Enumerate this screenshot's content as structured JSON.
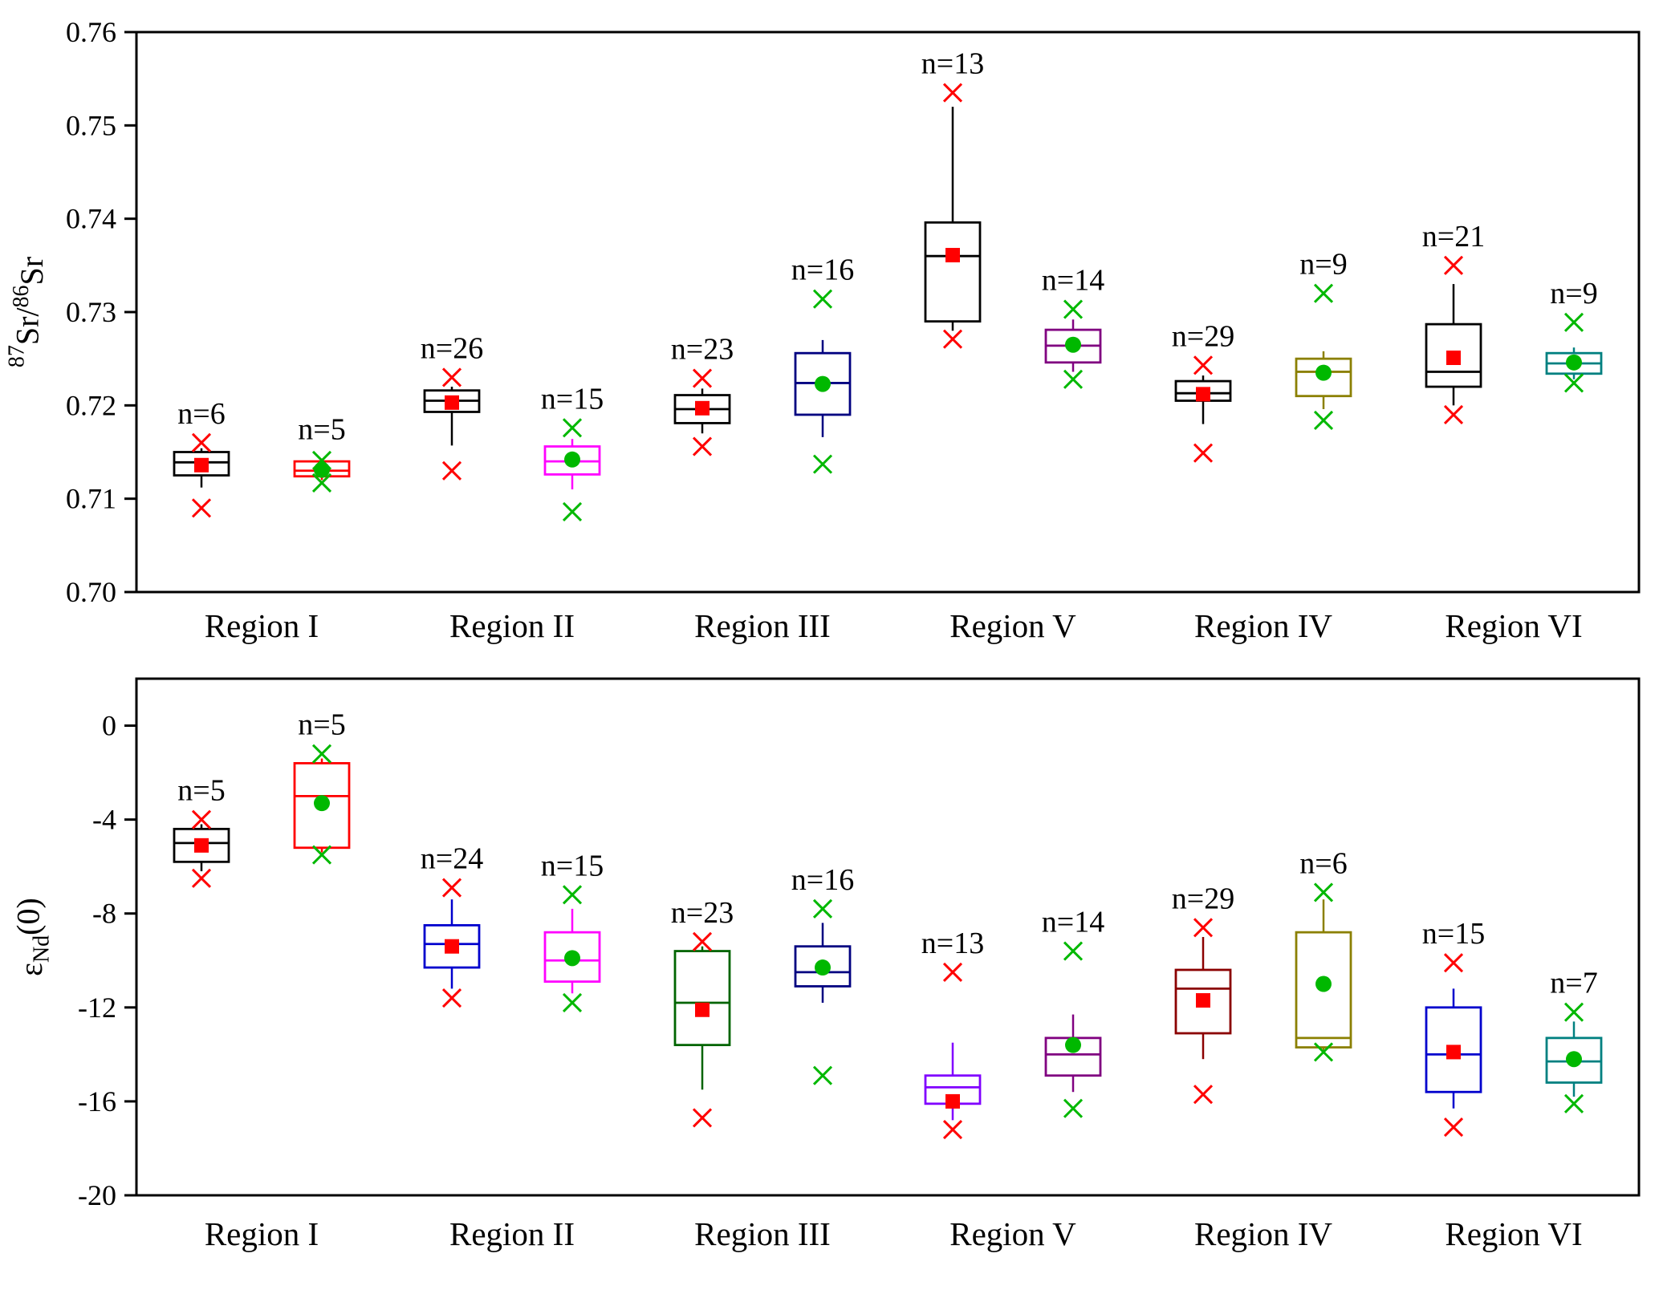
{
  "figure": {
    "background": "#ffffff",
    "frame_color": "#000000"
  },
  "chart_data": [
    {
      "type": "boxplot",
      "panel": "sr-isotope-ratio",
      "ylabel_text": "87Sr/86Sr",
      "ylabel_rich": [
        {
          "text": "87",
          "sup": true
        },
        {
          "text": "Sr/"
        },
        {
          "text": "86",
          "sup": true
        },
        {
          "text": "Sr"
        }
      ],
      "ylim": [
        0.7,
        0.76
      ],
      "yticks": [
        {
          "v": 0.76,
          "label": "0.76"
        },
        {
          "v": 0.75,
          "label": "0.75"
        },
        {
          "v": 0.74,
          "label": "0.74"
        },
        {
          "v": 0.73,
          "label": "0.73"
        },
        {
          "v": 0.72,
          "label": "0.72"
        },
        {
          "v": 0.71,
          "label": "0.71"
        },
        {
          "v": 0.7,
          "label": "0.70"
        }
      ],
      "categories": [
        "Region I",
        "Region II",
        "Region III",
        "Region V",
        "Region IV",
        "Region VI"
      ],
      "groups": [
        {
          "category": "Region I",
          "boxes": [
            {
              "n_label": "n=6",
              "color": "#000000",
              "marker": "square",
              "marker_color": "#ff0000",
              "q1": 0.7125,
              "q3": 0.715,
              "median": 0.7139,
              "mean": 0.7136,
              "whisker_low": 0.7112,
              "whisker_high": 0.7154,
              "outliers_high": [
                0.716
              ],
              "outliers_low": [
                0.709
              ]
            },
            {
              "n_label": "n=5",
              "color": "#ff0000",
              "marker": "circle",
              "marker_color": "#00b800",
              "q1": 0.7124,
              "q3": 0.714,
              "median": 0.713,
              "mean": 0.7131,
              "whisker_low": 0.712,
              "whisker_high": 0.7143,
              "outliers_high": [
                0.7141
              ],
              "outliers_low": [
                0.7117
              ]
            }
          ]
        },
        {
          "category": "Region II",
          "boxes": [
            {
              "n_label": "n=26",
              "color": "#000000",
              "marker": "square",
              "marker_color": "#ff0000",
              "q1": 0.7193,
              "q3": 0.7216,
              "median": 0.7205,
              "mean": 0.7203,
              "whisker_low": 0.7157,
              "whisker_high": 0.722,
              "outliers_high": [
                0.723
              ],
              "outliers_low": [
                0.713
              ]
            },
            {
              "n_label": "n=15",
              "color": "#ff00ff",
              "marker": "circle",
              "marker_color": "#00b800",
              "q1": 0.7126,
              "q3": 0.7156,
              "median": 0.714,
              "mean": 0.7142,
              "whisker_low": 0.711,
              "whisker_high": 0.7164,
              "outliers_high": [
                0.7176
              ],
              "outliers_low": [
                0.7086
              ]
            }
          ]
        },
        {
          "category": "Region III",
          "boxes": [
            {
              "n_label": "n=23",
              "color": "#000000",
              "marker": "square",
              "marker_color": "#ff0000",
              "q1": 0.7181,
              "q3": 0.7211,
              "median": 0.7196,
              "mean": 0.7197,
              "whisker_low": 0.717,
              "whisker_high": 0.7218,
              "outliers_high": [
                0.7229
              ],
              "outliers_low": [
                0.7156
              ]
            },
            {
              "n_label": "n=16",
              "color": "#000080",
              "marker": "circle",
              "marker_color": "#00b800",
              "q1": 0.719,
              "q3": 0.7256,
              "median": 0.7224,
              "mean": 0.7223,
              "whisker_low": 0.7166,
              "whisker_high": 0.727,
              "outliers_high": [
                0.7314
              ],
              "outliers_low": [
                0.7137
              ]
            }
          ]
        },
        {
          "category": "Region V",
          "boxes": [
            {
              "n_label": "n=13",
              "color": "#000000",
              "marker": "square",
              "marker_color": "#ff0000",
              "q1": 0.729,
              "q3": 0.7396,
              "median": 0.736,
              "mean": 0.7361,
              "whisker_low": 0.728,
              "whisker_high": 0.752,
              "outliers_high": [
                0.7535
              ],
              "outliers_low": [
                0.7271
              ]
            },
            {
              "n_label": "n=14",
              "color": "#800080",
              "marker": "circle",
              "marker_color": "#00b800",
              "q1": 0.7246,
              "q3": 0.7281,
              "median": 0.7264,
              "mean": 0.7265,
              "whisker_low": 0.7236,
              "whisker_high": 0.7292,
              "outliers_high": [
                0.7303
              ],
              "outliers_low": [
                0.7228
              ]
            }
          ]
        },
        {
          "category": "Region IV",
          "boxes": [
            {
              "n_label": "n=29",
              "color": "#000000",
              "marker": "square",
              "marker_color": "#ff0000",
              "q1": 0.7205,
              "q3": 0.7226,
              "median": 0.7213,
              "mean": 0.7212,
              "whisker_low": 0.718,
              "whisker_high": 0.7232,
              "outliers_high": [
                0.7243
              ],
              "outliers_low": [
                0.7149
              ]
            },
            {
              "n_label": "n=9",
              "color": "#8b8000",
              "marker": "circle",
              "marker_color": "#00b800",
              "q1": 0.721,
              "q3": 0.725,
              "median": 0.7236,
              "mean": 0.7235,
              "whisker_low": 0.7196,
              "whisker_high": 0.7258,
              "outliers_high": [
                0.732
              ],
              "outliers_low": [
                0.7184
              ]
            }
          ]
        },
        {
          "category": "Region VI",
          "boxes": [
            {
              "n_label": "n=21",
              "color": "#000000",
              "marker": "square",
              "marker_color": "#ff0000",
              "q1": 0.722,
              "q3": 0.7287,
              "median": 0.7236,
              "mean": 0.7251,
              "whisker_low": 0.72,
              "whisker_high": 0.733,
              "outliers_high": [
                0.735
              ],
              "outliers_low": [
                0.719
              ]
            },
            {
              "n_label": "n=9",
              "color": "#008080",
              "marker": "circle",
              "marker_color": "#00b800",
              "q1": 0.7234,
              "q3": 0.7256,
              "median": 0.7245,
              "mean": 0.7246,
              "whisker_low": 0.7228,
              "whisker_high": 0.7262,
              "outliers_high": [
                0.7289
              ],
              "outliers_low": [
                0.7224
              ]
            }
          ]
        }
      ]
    },
    {
      "type": "boxplot",
      "panel": "epsilon-nd",
      "ylabel_text": "eNd(0)",
      "ylabel_rich": [
        {
          "text": "ε"
        },
        {
          "text": "Nd",
          "sub": true
        },
        {
          "text": "(0)"
        }
      ],
      "ylim": [
        -20,
        2
      ],
      "yticks": [
        {
          "v": 0,
          "label": "0"
        },
        {
          "v": -4,
          "label": "-4"
        },
        {
          "v": -8,
          "label": "-8"
        },
        {
          "v": -12,
          "label": "-12"
        },
        {
          "v": -16,
          "label": "-16"
        },
        {
          "v": -20,
          "label": "-20"
        }
      ],
      "categories": [
        "Region I",
        "Region II",
        "Region III",
        "Region V",
        "Region IV",
        "Region VI"
      ],
      "groups": [
        {
          "category": "Region I",
          "boxes": [
            {
              "n_label": "n=5",
              "color": "#000000",
              "marker": "square",
              "marker_color": "#ff0000",
              "q1": -5.8,
              "q3": -4.4,
              "median": -5.0,
              "mean": -5.1,
              "whisker_low": -6.2,
              "whisker_high": -4.2,
              "outliers_high": [
                -4.0
              ],
              "outliers_low": [
                -6.5
              ]
            },
            {
              "n_label": "n=5",
              "color": "#ff0000",
              "marker": "circle",
              "marker_color": "#00b800",
              "q1": -5.2,
              "q3": -1.6,
              "median": -3.0,
              "mean": -3.3,
              "whisker_low": -5.4,
              "whisker_high": -1.4,
              "outliers_high": [
                -1.2
              ],
              "outliers_low": [
                -5.5
              ]
            }
          ]
        },
        {
          "category": "Region II",
          "boxes": [
            {
              "n_label": "n=24",
              "color": "#0000cd",
              "marker": "square",
              "marker_color": "#ff0000",
              "q1": -10.3,
              "q3": -8.5,
              "median": -9.3,
              "mean": -9.4,
              "whisker_low": -11.2,
              "whisker_high": -7.4,
              "outliers_high": [
                -6.9
              ],
              "outliers_low": [
                -11.6
              ]
            },
            {
              "n_label": "n=15",
              "color": "#ff00ff",
              "marker": "circle",
              "marker_color": "#00b800",
              "q1": -10.9,
              "q3": -8.8,
              "median": -10.0,
              "mean": -9.9,
              "whisker_low": -11.4,
              "whisker_high": -7.8,
              "outliers_high": [
                -7.2
              ],
              "outliers_low": [
                -11.8
              ]
            }
          ]
        },
        {
          "category": "Region III",
          "boxes": [
            {
              "n_label": "n=23",
              "color": "#006400",
              "marker": "square",
              "marker_color": "#ff0000",
              "q1": -13.6,
              "q3": -9.6,
              "median": -11.8,
              "mean": -12.1,
              "whisker_low": -15.5,
              "whisker_high": -9.4,
              "outliers_high": [
                -9.2
              ],
              "outliers_low": [
                -16.7
              ]
            },
            {
              "n_label": "n=16",
              "color": "#000080",
              "marker": "circle",
              "marker_color": "#00b800",
              "q1": -11.1,
              "q3": -9.4,
              "median": -10.5,
              "mean": -10.3,
              "whisker_low": -11.8,
              "whisker_high": -8.4,
              "outliers_high": [
                -7.8
              ],
              "outliers_low": [
                -14.9
              ]
            }
          ]
        },
        {
          "category": "Region V",
          "boxes": [
            {
              "n_label": "n=13",
              "color": "#8000ff",
              "marker": "square",
              "marker_color": "#ff0000",
              "q1": -16.1,
              "q3": -14.9,
              "median": -15.4,
              "mean": -16.0,
              "whisker_low": -16.8,
              "whisker_high": -13.5,
              "outliers_high": [
                -10.5
              ],
              "outliers_low": [
                -17.2
              ]
            },
            {
              "n_label": "n=14",
              "color": "#800080",
              "marker": "circle",
              "marker_color": "#00b800",
              "q1": -14.9,
              "q3": -13.3,
              "median": -14.0,
              "mean": -13.6,
              "whisker_low": -15.6,
              "whisker_high": -12.3,
              "outliers_high": [
                -9.6
              ],
              "outliers_low": [
                -16.3
              ]
            }
          ]
        },
        {
          "category": "Region IV",
          "boxes": [
            {
              "n_label": "n=29",
              "color": "#8b0000",
              "marker": "square",
              "marker_color": "#ff0000",
              "q1": -13.1,
              "q3": -10.4,
              "median": -11.2,
              "mean": -11.7,
              "whisker_low": -14.2,
              "whisker_high": -9.0,
              "outliers_high": [
                -8.6
              ],
              "outliers_low": [
                -15.7
              ]
            },
            {
              "n_label": "n=6",
              "color": "#8b8000",
              "marker": "circle",
              "marker_color": "#00b800",
              "q1": -13.7,
              "q3": -8.8,
              "median": -13.3,
              "mean": -11.0,
              "whisker_low": -13.9,
              "whisker_high": -7.4,
              "outliers_high": [
                -7.1
              ],
              "outliers_low": [
                -13.9
              ]
            }
          ]
        },
        {
          "category": "Region VI",
          "boxes": [
            {
              "n_label": "n=15",
              "color": "#0000cd",
              "marker": "square",
              "marker_color": "#ff0000",
              "q1": -15.6,
              "q3": -12.0,
              "median": -14.0,
              "mean": -13.9,
              "whisker_low": -16.3,
              "whisker_high": -11.2,
              "outliers_high": [
                -10.1
              ],
              "outliers_low": [
                -17.1
              ]
            },
            {
              "n_label": "n=7",
              "color": "#008080",
              "marker": "circle",
              "marker_color": "#00b800",
              "q1": -15.2,
              "q3": -13.3,
              "median": -14.3,
              "mean": -14.2,
              "whisker_low": -15.8,
              "whisker_high": -12.6,
              "outliers_high": [
                -12.2
              ],
              "outliers_low": [
                -16.1
              ]
            }
          ]
        }
      ]
    }
  ]
}
